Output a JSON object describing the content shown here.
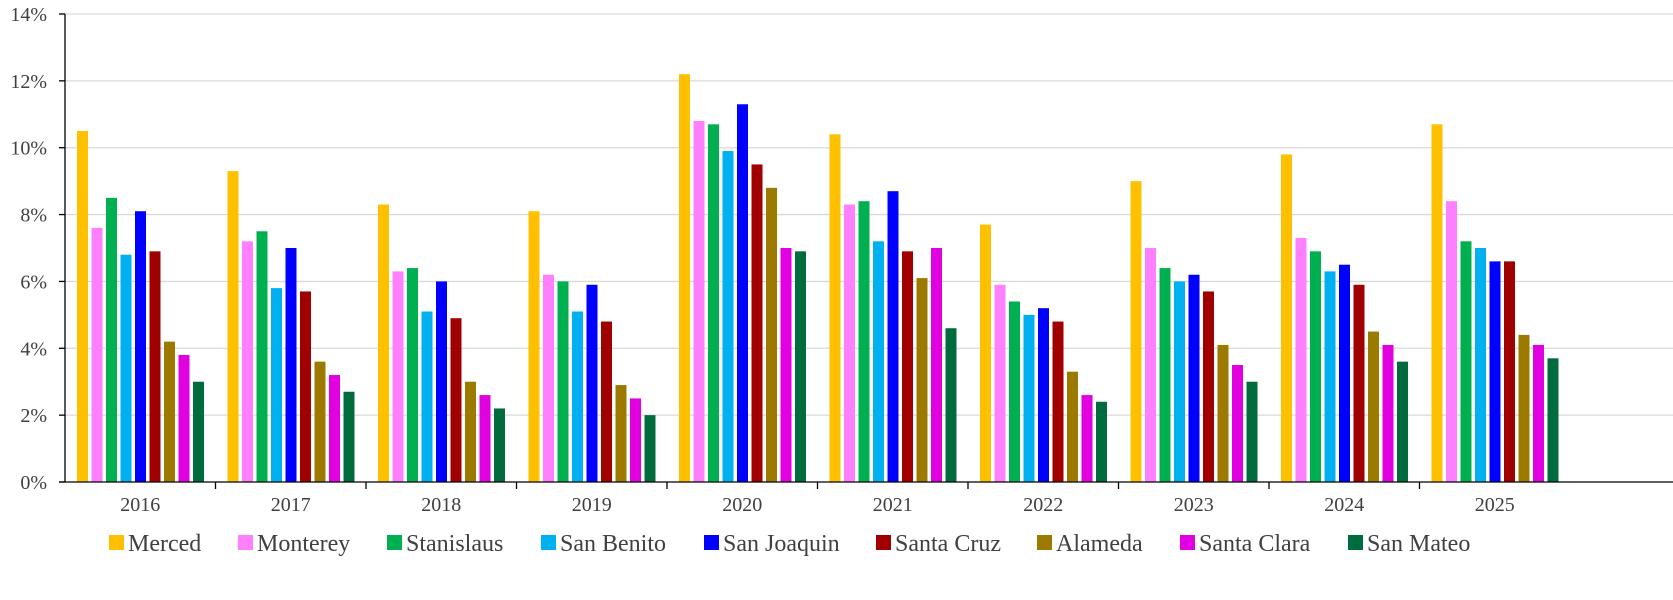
{
  "chart_data": {
    "type": "bar",
    "categories": [
      "2016",
      "2017",
      "2018",
      "2019",
      "2020",
      "2021",
      "2022",
      "2023",
      "2024",
      "2025"
    ],
    "ylim": [
      0,
      14
    ],
    "yticks": [
      "0%",
      "2%",
      "4%",
      "6%",
      "8%",
      "10%",
      "12%",
      "14%"
    ],
    "grid": true,
    "legend_position": "bottom",
    "series": [
      {
        "name": "Merced",
        "color": "#FFC000",
        "values": [
          10.5,
          9.3,
          8.3,
          8.1,
          12.2,
          10.4,
          7.7,
          9.0,
          9.8,
          10.7
        ]
      },
      {
        "name": "Monterey",
        "color": "#FF80FF",
        "values": [
          7.6,
          7.2,
          6.3,
          6.2,
          10.8,
          8.3,
          5.9,
          7.0,
          7.3,
          8.4
        ]
      },
      {
        "name": "Stanislaus",
        "color": "#00B050",
        "values": [
          8.5,
          7.5,
          6.4,
          6.0,
          10.7,
          8.4,
          5.4,
          6.4,
          6.9,
          7.2
        ]
      },
      {
        "name": "San Benito",
        "color": "#00B0F0",
        "values": [
          6.8,
          5.8,
          5.1,
          5.1,
          9.9,
          7.2,
          5.0,
          6.0,
          6.3,
          7.0
        ]
      },
      {
        "name": "San Joaquin",
        "color": "#0000FF",
        "values": [
          8.1,
          7.0,
          6.0,
          5.9,
          11.3,
          8.7,
          5.2,
          6.2,
          6.5,
          6.6
        ]
      },
      {
        "name": "Santa Cruz",
        "color": "#A00000",
        "values": [
          6.9,
          5.7,
          4.9,
          4.8,
          9.5,
          6.9,
          4.8,
          5.7,
          5.9,
          6.6
        ]
      },
      {
        "name": "Alameda",
        "color": "#9C7A00",
        "values": [
          4.2,
          3.6,
          3.0,
          2.9,
          8.8,
          6.1,
          3.3,
          4.1,
          4.5,
          4.4
        ]
      },
      {
        "name": "Santa Clara",
        "color": "#E000E0",
        "values": [
          3.8,
          3.2,
          2.6,
          2.5,
          7.0,
          7.0,
          2.6,
          3.5,
          4.1,
          4.1
        ]
      },
      {
        "name": "San Mateo",
        "color": "#006B3C",
        "values": [
          3.0,
          2.7,
          2.2,
          2.0,
          6.9,
          4.6,
          2.4,
          3.0,
          3.6,
          3.7
        ]
      }
    ]
  }
}
